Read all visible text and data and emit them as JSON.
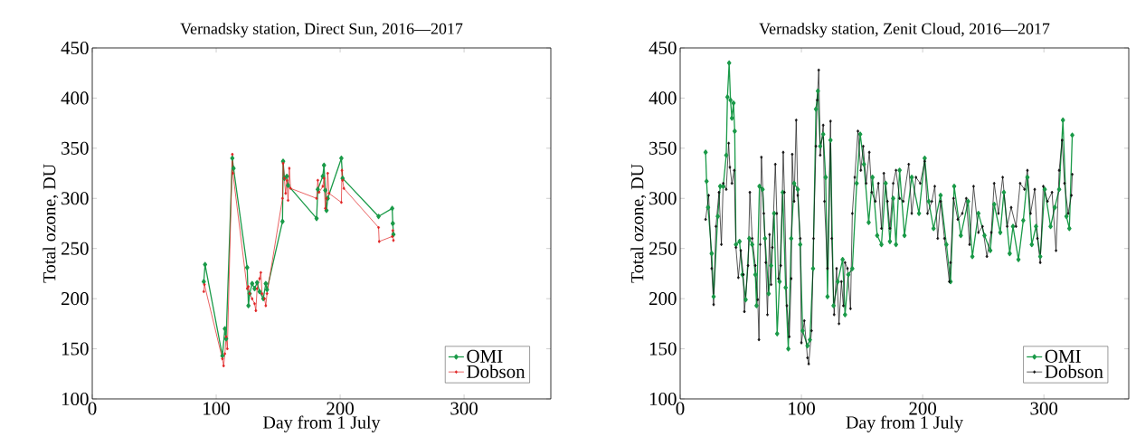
{
  "chart_data": [
    {
      "type": "line",
      "title": "Vernadsky station, Direct Sun, 2016—2017",
      "xlabel": "Day from 1 July",
      "ylabel": "Total ozone, DU",
      "xlim": [
        0,
        370
      ],
      "ylim": [
        100,
        450
      ],
      "xticks": [
        0,
        100,
        200,
        300
      ],
      "yticks": [
        100,
        150,
        200,
        250,
        300,
        350,
        400,
        450
      ],
      "legend": "bottom right",
      "marker": "diamond",
      "grid": false,
      "series": [
        {
          "name": "OMI",
          "color": "#1a9a48",
          "x": [
            90,
            91,
            105,
            107,
            108,
            113,
            114,
            125,
            126,
            127,
            129,
            131,
            133,
            135,
            138,
            140,
            141,
            153.5,
            154,
            155,
            157,
            158,
            181,
            182,
            186,
            187,
            188,
            189,
            190,
            201,
            202,
            231,
            242,
            242.5,
            243
          ],
          "values": [
            217,
            234,
            143,
            170,
            160,
            340,
            330,
            231,
            193,
            205,
            215,
            210,
            216,
            207,
            200,
            215,
            209,
            277,
            337,
            320,
            322,
            313,
            280,
            309,
            322,
            333,
            308,
            288,
            300,
            340,
            320,
            282,
            290,
            275,
            264
          ]
        },
        {
          "name": "Dobson",
          "color": "#e02020",
          "x": [
            90,
            90.5,
            105,
            106,
            107,
            108,
            109,
            113,
            113.5,
            125,
            126,
            127,
            129,
            131,
            132,
            133,
            135,
            136,
            137,
            139,
            140,
            141,
            153.5,
            154,
            155,
            156,
            157,
            158,
            159,
            160,
            181,
            182,
            183,
            186,
            187,
            188,
            189,
            190,
            191,
            201,
            201.5,
            202,
            203,
            231,
            231.5,
            242,
            242.5,
            243
          ],
          "values": [
            207,
            214,
            140,
            133,
            145,
            162,
            150,
            344,
            325,
            210,
            212,
            205,
            200,
            195,
            188,
            210,
            220,
            226,
            205,
            200,
            193,
            205,
            300,
            335,
            320,
            305,
            318,
            298,
            330,
            310,
            300,
            318,
            306,
            312,
            320,
            290,
            300,
            325,
            305,
            296,
            328,
            318,
            310,
            271,
            257,
            262,
            268,
            258
          ]
        }
      ]
    },
    {
      "type": "line",
      "title": "Vernadsky station, Zenit Cloud, 2016—2017",
      "xlabel": "Day from 1 July",
      "ylabel": "Total ozone, DU",
      "xlim": [
        0,
        370
      ],
      "ylim": [
        100,
        450
      ],
      "xticks": [
        0,
        100,
        200,
        300
      ],
      "yticks": [
        100,
        150,
        200,
        250,
        300,
        350,
        400,
        450
      ],
      "legend": "bottom right",
      "marker": "diamond",
      "grid": false,
      "series": [
        {
          "name": "OMI",
          "color": "#1a9a48",
          "x": [
            21,
            21.8,
            23,
            26,
            27.6,
            31,
            33,
            35.5,
            38,
            39,
            40.4,
            41.5,
            42.7,
            44,
            45,
            46,
            49,
            51.4,
            54,
            57,
            59.4,
            62,
            63,
            65.4,
            68,
            70,
            73,
            75,
            77.5,
            80,
            82,
            84.6,
            87,
            89.2,
            91.6,
            94,
            97,
            99,
            101,
            105,
            107,
            109.6,
            112,
            113.6,
            115.5,
            118,
            120,
            121.5,
            124,
            126.5,
            130,
            134,
            136,
            138.7,
            142,
            145.6,
            148.5,
            151.6,
            155.5,
            158.6,
            162.5,
            166,
            169.5,
            173,
            175.7,
            178,
            181,
            185,
            191,
            197,
            201.7,
            205,
            209,
            214.8,
            219.6,
            223,
            226,
            231.5,
            237.5,
            241,
            246,
            251,
            255.8,
            259,
            264,
            267,
            271.8,
            274.5,
            279,
            283,
            286.4,
            290,
            293.5,
            297,
            300.7,
            305.5,
            309,
            312.6,
            315.7,
            318.6,
            321,
            323.4
          ],
          "values": [
            346,
            317,
            291,
            245,
            202,
            282,
            312,
            312,
            343,
            401,
            435,
            398,
            380,
            395,
            367,
            254,
            257,
            224,
            199,
            260,
            254,
            224,
            193,
            312,
            309,
            260,
            205,
            233,
            285,
            165,
            217,
            306,
            211,
            150,
            260,
            315,
            309,
            254,
            168,
            153,
            159,
            230,
            389,
            407,
            352,
            364,
            321,
            202,
            358,
            193,
            217,
            239,
            184,
            224,
            230,
            315,
            364,
            334,
            276,
            321,
            263,
            254,
            315,
            257,
            300,
            254,
            328,
            263,
            321,
            285,
            340,
            297,
            270,
            303,
            254,
            217,
            312,
            263,
            297,
            242,
            285,
            263,
            248,
            294,
            266,
            306,
            245,
            272,
            239,
            278,
            321,
            254,
            272,
            242,
            309,
            272,
            291,
            309,
            378,
            282,
            270,
            363
          ]
        },
        {
          "name": "Dobson",
          "color": "#111111",
          "x": [
            21,
            23.5,
            26,
            27.6,
            29.5,
            32,
            34,
            35.5,
            38,
            40,
            41,
            42.7,
            44.6,
            46,
            48,
            50,
            52,
            53,
            56,
            57.5,
            59.4,
            62,
            64,
            65,
            66,
            67,
            69,
            70.6,
            72,
            73.7,
            75,
            76,
            78.5,
            79.7,
            81,
            83,
            85,
            86,
            88,
            90,
            91.6,
            92.4,
            94,
            95.7,
            97,
            99,
            100,
            102.4,
            105,
            106,
            108.4,
            110,
            112,
            113,
            114.3,
            115.5,
            118,
            119,
            121.5,
            124,
            125,
            127,
            129,
            131,
            133,
            134.6,
            136,
            138,
            140.5,
            142,
            144,
            146.6,
            149,
            151,
            153.4,
            156,
            158,
            161,
            163.5,
            166,
            168,
            171,
            173,
            175.7,
            178,
            181,
            184,
            188.5,
            191,
            194.5,
            198,
            201.7,
            204,
            207.6,
            210,
            212.4,
            214.8,
            218,
            222,
            223,
            225.5,
            229,
            232.7,
            236,
            238.7,
            242,
            246,
            249.4,
            253,
            256.6,
            259,
            262.5,
            266,
            269.7,
            273,
            277,
            280.4,
            284,
            286.4,
            289,
            292.4,
            294.7,
            297,
            299.5,
            303,
            306.7,
            310,
            312.6,
            315,
            317,
            320,
            322.7,
            323.4
          ],
          "values": [
            279,
            303,
            230,
            194,
            272,
            306,
            254,
            315,
            309,
            355,
            331,
            315,
            328,
            251,
            221,
            248,
            224,
            187,
            233,
            306,
            260,
            233,
            199,
            159,
            254,
            341,
            285,
            236,
            184,
            264,
            214,
            251,
            334,
            285,
            220,
            233,
            346,
            306,
            193,
            162,
            220,
            344,
            297,
            378,
            303,
            260,
            156,
            178,
            141,
            135,
            168,
            260,
            352,
            398,
            428,
            343,
            373,
            297,
            230,
            377,
            260,
            184,
            230,
            175,
            217,
            193,
            236,
            230,
            190,
            285,
            321,
            367,
            328,
            352,
            315,
            346,
            306,
            297,
            315,
            270,
            325,
            297,
            270,
            315,
            328,
            300,
            297,
            334,
            285,
            321,
            315,
            337,
            285,
            297,
            312,
            260,
            297,
            260,
            217,
            236,
            300,
            279,
            285,
            300,
            254,
            312,
            266,
            272,
            242,
            266,
            315,
            285,
            321,
            272,
            291,
            272,
            315,
            309,
            328,
            285,
            309,
            260,
            236,
            312,
            297,
            306,
            248,
            328,
            358,
            315,
            285,
            303,
            324
          ]
        }
      ]
    }
  ]
}
